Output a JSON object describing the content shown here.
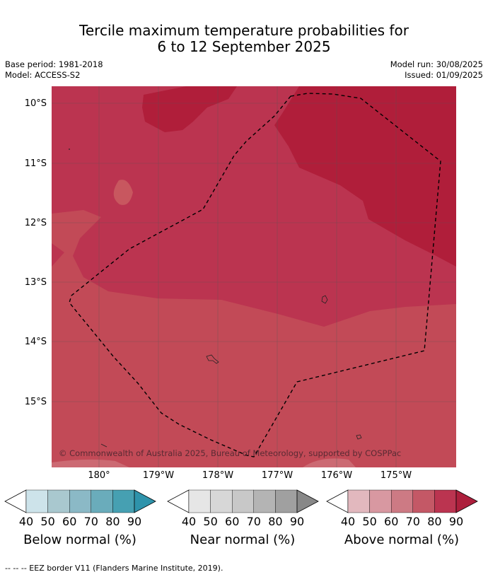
{
  "title_line1": "Tercile maximum temperature probabilities for",
  "title_line2": "6 to 12 September 2025",
  "meta_left": [
    "Base period: 1981-2018",
    "Model: ACCESS-S2"
  ],
  "meta_right": [
    "Model run: 30/08/2025",
    "Issued: 01/09/2025"
  ],
  "lat_labels": [
    "10°S",
    "11°S",
    "12°S",
    "13°S",
    "14°S",
    "15°S"
  ],
  "lon_labels": [
    "180°",
    "179°W",
    "178°W",
    "177°W",
    "176°W",
    "175°W"
  ],
  "copyright": "© Commonwealth of Australia 2025, Bureau of Meteorology, supported by COSPPac",
  "colorbars": [
    {
      "title": "Below normal (%)",
      "ticks": [
        "40",
        "50",
        "60",
        "70",
        "80",
        "90"
      ],
      "colors": [
        "#ffffff",
        "#cde3ea",
        "#a9c8cf",
        "#8bb9c6",
        "#6aacbb",
        "#46a0b2",
        "#2e93ab"
      ]
    },
    {
      "title": "Near normal (%)",
      "ticks": [
        "40",
        "50",
        "60",
        "70",
        "80",
        "90"
      ],
      "colors": [
        "#ffffff",
        "#e6e6e6",
        "#d7d7d7",
        "#c8c8c8",
        "#b4b4b4",
        "#a0a0a0",
        "#888888"
      ]
    },
    {
      "title": "Above normal (%)",
      "ticks": [
        "40",
        "50",
        "60",
        "70",
        "80",
        "90"
      ],
      "colors": [
        "#ffffff",
        "#e2b8be",
        "#d898a1",
        "#cd7a84",
        "#c45866",
        "#bb3450",
        "#ad1f3c"
      ]
    }
  ],
  "footer": "--  --  -- EEZ border V11 (Flanders Marine Institute, 2019).",
  "map_colors": {
    "above_80_90": "#bb3450",
    "above_90": "#b01e3a",
    "above_70_80": "#c24a57",
    "above_60_70": "#cc6a73"
  }
}
